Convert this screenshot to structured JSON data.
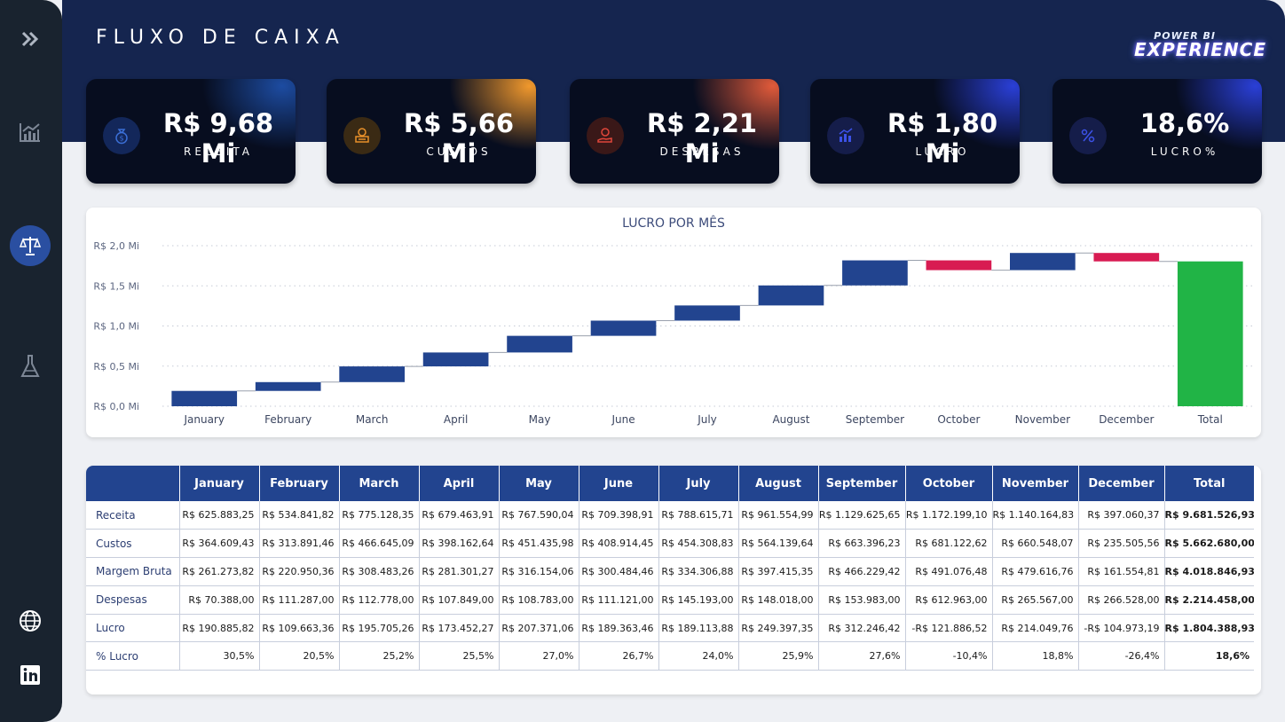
{
  "header": {
    "title": "FLUXO DE CAIXA",
    "logo_line1": "POWER BI",
    "logo_line2": "EXPERIENCE"
  },
  "sidebar": {
    "items": [
      {
        "icon": "chevrons-right-icon",
        "active": false
      },
      {
        "icon": "line-chart-icon",
        "active": false
      },
      {
        "icon": "scale-icon",
        "active": true
      },
      {
        "icon": "flask-icon",
        "active": false
      },
      {
        "icon": "globe-icon",
        "active": false
      },
      {
        "icon": "linkedin-icon",
        "active": false
      }
    ]
  },
  "kpis": [
    {
      "value": "R$ 9,68 Mi",
      "label": "RECEITA",
      "icon": "money-bag-icon",
      "accent": "#1e4fa8"
    },
    {
      "value": "R$ 5,66 Mi",
      "label": "CUSTOS",
      "icon": "cash-register-icon",
      "accent": "#e8902a"
    },
    {
      "value": "R$ 2,21 Mi",
      "label": "DESPESAS",
      "icon": "hand-coin-icon",
      "accent": "#e05a3a"
    },
    {
      "value": "R$ 1,80 Mi",
      "label": "LUCRO",
      "icon": "bar-chart-icon",
      "accent": "#2a3fd6"
    },
    {
      "value": "18,6%",
      "label": "LUCRO%",
      "icon": "percent-icon",
      "accent": "#2a3fd6"
    }
  ],
  "chart_data": {
    "type": "bar",
    "subtype": "waterfall",
    "title": "LUCRO POR MÊS",
    "categories": [
      "January",
      "February",
      "March",
      "April",
      "May",
      "June",
      "July",
      "August",
      "September",
      "October",
      "November",
      "December",
      "Total"
    ],
    "values": [
      190885.82,
      109663.36,
      195705.26,
      173452.27,
      207371.06,
      189363.46,
      189113.88,
      249397.35,
      312246.42,
      -121886.52,
      214049.76,
      -104973.19,
      1804388.93
    ],
    "ytick_labels": [
      "R$ 0,0 Mi",
      "R$ 0,5 Mi",
      "R$ 1,0 Mi",
      "R$ 1,5 Mi",
      "R$ 2,0 Mi"
    ],
    "yticks": [
      0,
      500000,
      1000000,
      1500000,
      2000000
    ],
    "ylim": [
      0,
      2000000
    ],
    "grid": true,
    "colors": {
      "increase": "#22448f",
      "decrease": "#d81b52",
      "total": "#21b446"
    }
  },
  "table": {
    "columns": [
      "",
      "January",
      "February",
      "March",
      "April",
      "May",
      "June",
      "July",
      "August",
      "September",
      "October",
      "November",
      "December",
      "Total"
    ],
    "rows": [
      [
        "Receita",
        "R$ 625.883,25",
        "R$ 534.841,82",
        "R$ 775.128,35",
        "R$ 679.463,91",
        "R$ 767.590,04",
        "R$ 709.398,91",
        "R$ 788.615,71",
        "R$ 961.554,99",
        "R$ 1.129.625,65",
        "R$ 1.172.199,10",
        "R$ 1.140.164,83",
        "R$ 397.060,37",
        "R$ 9.681.526,93"
      ],
      [
        "Custos",
        "R$ 364.609,43",
        "R$ 313.891,46",
        "R$ 466.645,09",
        "R$ 398.162,64",
        "R$ 451.435,98",
        "R$ 408.914,45",
        "R$ 454.308,83",
        "R$ 564.139,64",
        "R$ 663.396,23",
        "R$ 681.122,62",
        "R$ 660.548,07",
        "R$ 235.505,56",
        "R$ 5.662.680,00"
      ],
      [
        "Margem Bruta",
        "R$ 261.273,82",
        "R$ 220.950,36",
        "R$ 308.483,26",
        "R$ 281.301,27",
        "R$ 316.154,06",
        "R$ 300.484,46",
        "R$ 334.306,88",
        "R$ 397.415,35",
        "R$ 466.229,42",
        "R$ 491.076,48",
        "R$ 479.616,76",
        "R$ 161.554,81",
        "R$ 4.018.846,93"
      ],
      [
        "Despesas",
        "R$ 70.388,00",
        "R$ 111.287,00",
        "R$ 112.778,00",
        "R$ 107.849,00",
        "R$ 108.783,00",
        "R$ 111.121,00",
        "R$ 145.193,00",
        "R$ 148.018,00",
        "R$ 153.983,00",
        "R$ 612.963,00",
        "R$ 265.567,00",
        "R$ 266.528,00",
        "R$ 2.214.458,00"
      ],
      [
        "Lucro",
        "R$ 190.885,82",
        "R$ 109.663,36",
        "R$ 195.705,26",
        "R$ 173.452,27",
        "R$ 207.371,06",
        "R$ 189.363,46",
        "R$ 189.113,88",
        "R$ 249.397,35",
        "R$ 312.246,42",
        "-R$ 121.886,52",
        "R$ 214.049,76",
        "-R$ 104.973,19",
        "R$ 1.804.388,93"
      ],
      [
        "% Lucro",
        "30,5%",
        "20,5%",
        "25,2%",
        "25,5%",
        "27,0%",
        "26,7%",
        "24,0%",
        "25,9%",
        "27,6%",
        "-10,4%",
        "18,8%",
        "-26,4%",
        "18,6%"
      ]
    ]
  }
}
